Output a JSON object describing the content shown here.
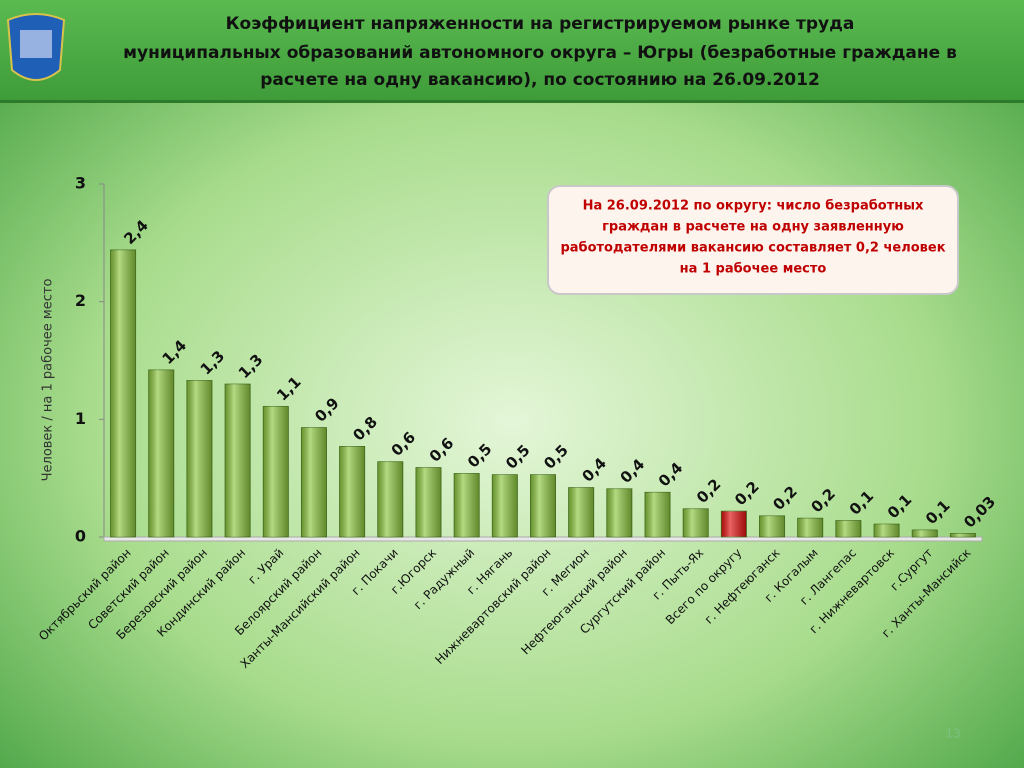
{
  "chart_data": {
    "type": "bar",
    "title": [
      "Коэффициент напряженности на регистрируемом рынке труда",
      "муниципальных образований автономного округа – Югры (безработные граждане в",
      "расчете на одну вакансию), по состоянию на 26.09.2012"
    ],
    "y_label": "Человек / на 1 рабочее место",
    "annotation": [
      "На 26.09.2012 по округу: число безработных",
      "граждан в расчете на одну заявленную",
      "работодателями вакансию составляет 0,2 человек",
      "на 1 рабочее место"
    ],
    "page_number": "13",
    "categories": [
      "Октябрьский район",
      "Советский район",
      "Березовский район",
      "Кондинский район",
      "г. Урай",
      "Белоярский район",
      "Ханты-Мансийский район",
      "г. Покачи",
      "г.Югорск",
      "г. Радужный",
      "г. Нягань",
      "Нижневартовский район",
      "г. Мегион",
      "Нефтеюганский район",
      "Сургутский район",
      "г. Пыть-Ях",
      "Всего по округу",
      "г. Нефтеюганск",
      "г. Когалым",
      "г. Лангепас",
      "г. Нижневартовск",
      "г.Сургут",
      "г. Ханты-Мансийск"
    ],
    "values": [
      2.44,
      1.42,
      1.33,
      1.3,
      1.11,
      0.93,
      0.77,
      0.64,
      0.59,
      0.54,
      0.53,
      0.53,
      0.42,
      0.41,
      0.38,
      0.24,
      0.22,
      0.18,
      0.16,
      0.14,
      0.11,
      0.06,
      0.03
    ],
    "value_labels": [
      "2,4",
      "1,4",
      "1,3",
      "1,3",
      "1,1",
      "0,9",
      "0,8",
      "0,6",
      "0,6",
      "0,5",
      "0,5",
      "0,5",
      "0,4",
      "0,4",
      "0,4",
      "0,2",
      "0,2",
      "0,2",
      "0,2",
      "0,1",
      "0,1",
      "0,1",
      "0,03"
    ],
    "colors": [
      "#8cc63f",
      "#8cc63f",
      "#8cc63f",
      "#8cc63f",
      "#8cc63f",
      "#8cc63f",
      "#8cc63f",
      "#8cc63f",
      "#8cc63f",
      "#8cc63f",
      "#8cc63f",
      "#8cc63f",
      "#8cc63f",
      "#8cc63f",
      "#8cc63f",
      "#8cc63f",
      "#e01010",
      "#8cc63f",
      "#8cc63f",
      "#8cc63f",
      "#8cc63f",
      "#8cc63f",
      "#8cc63f"
    ],
    "ylim": [
      0,
      3
    ],
    "yticks": [
      0,
      1,
      2,
      3
    ]
  }
}
